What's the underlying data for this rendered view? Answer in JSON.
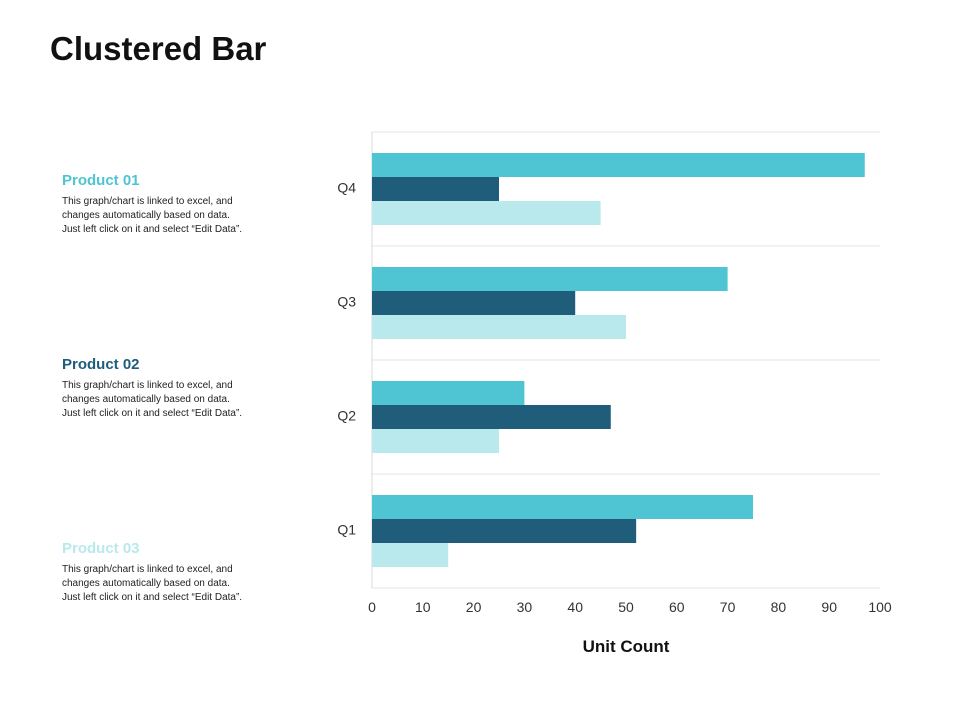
{
  "title": "Clustered Bar",
  "legend": [
    {
      "name": "Product 01",
      "color": "#4fc4d2",
      "description": [
        "This graph/chart is linked to excel, and",
        "changes automatically based on data.",
        "Just left click on it and select “Edit Data”."
      ]
    },
    {
      "name": "Product 02",
      "color": "#1f5d7a",
      "description": [
        "This graph/chart is linked to excel, and",
        "changes automatically based on data.",
        "Just left click on it and select “Edit Data”."
      ]
    },
    {
      "name": "Product 03",
      "color": "#b9e8ed",
      "description": [
        "This graph/chart is linked to excel, and",
        "changes automatically based on data.",
        "Just left click on it and select “Edit Data”."
      ]
    }
  ],
  "chart_data": {
    "type": "bar",
    "orientation": "horizontal",
    "title": "Clustered Bar",
    "xlabel": "Unit Count",
    "ylabel": "",
    "xlim": [
      0,
      100
    ],
    "xticks": [
      0,
      10,
      20,
      30,
      40,
      50,
      60,
      70,
      80,
      90,
      100
    ],
    "categories": [
      "Q1",
      "Q2",
      "Q3",
      "Q4"
    ],
    "series": [
      {
        "name": "Product 01",
        "color": "#4fc4d2",
        "values": [
          75,
          30,
          70,
          97
        ]
      },
      {
        "name": "Product 02",
        "color": "#1f5d7a",
        "values": [
          52,
          47,
          40,
          25
        ]
      },
      {
        "name": "Product 03",
        "color": "#b9e8ed",
        "values": [
          15,
          25,
          50,
          45
        ]
      }
    ],
    "grid": true,
    "legend_position": "left"
  }
}
